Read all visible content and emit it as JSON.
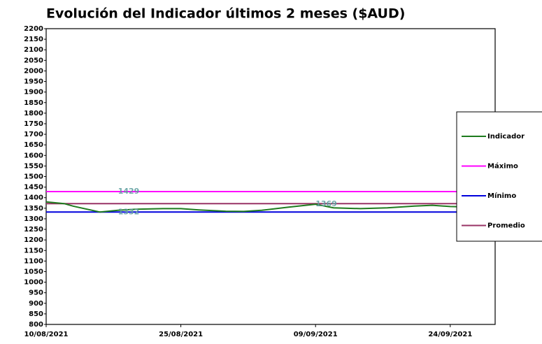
{
  "chart_data": {
    "type": "line",
    "title": "Evolución del Indicador últimos 2 meses ($AUD)",
    "x": [
      "10/08/2021",
      "12/08/2021",
      "13/08/2021",
      "16/08/2021",
      "18/08/2021",
      "20/08/2021",
      "23/08/2021",
      "25/08/2021",
      "27/08/2021",
      "30/08/2021",
      "01/09/2021",
      "03/09/2021",
      "06/09/2021",
      "09/09/2021",
      "11/09/2021",
      "14/09/2021",
      "17/09/2021",
      "20/09/2021",
      "22/09/2021",
      "24/09/2021",
      "27/09/2021",
      "29/09/2021"
    ],
    "series": [
      {
        "name": "Indicador",
        "color": "#1e7b1e",
        "values": [
          1380,
          1372,
          1360,
          1332,
          1340,
          1345,
          1348,
          1348,
          1342,
          1336,
          1335,
          1340,
          1355,
          1369,
          1352,
          1348,
          1352,
          1360,
          1364,
          1358,
          1355,
          1352
        ]
      },
      {
        "name": "Máximo",
        "color": "#ff00ff",
        "values": [
          1429,
          1429,
          1429,
          1429,
          1429,
          1429,
          1429,
          1429,
          1429,
          1429,
          1429,
          1429,
          1429,
          1429,
          1429,
          1429,
          1429,
          1429,
          1429,
          1429,
          1429,
          1429
        ]
      },
      {
        "name": "Mínimo",
        "color": "#0000dd",
        "values": [
          1332,
          1332,
          1332,
          1332,
          1332,
          1332,
          1332,
          1332,
          1332,
          1332,
          1332,
          1332,
          1332,
          1332,
          1332,
          1332,
          1332,
          1332,
          1332,
          1332,
          1332,
          1332
        ]
      },
      {
        "name": "Promedio",
        "color": "#993366",
        "values": [
          1372,
          1372,
          1372,
          1372,
          1372,
          1372,
          1372,
          1372,
          1372,
          1372,
          1372,
          1372,
          1372,
          1372,
          1372,
          1372,
          1372,
          1372,
          1372,
          1372,
          1372,
          1372
        ]
      }
    ],
    "annotations": [
      {
        "text": "1429",
        "x": "18/08/2021",
        "value": 1429
      },
      {
        "text": "1332",
        "x": "18/08/2021",
        "value": 1332
      },
      {
        "text": "1369",
        "x": "09/09/2021",
        "value": 1369
      }
    ],
    "xlim": [
      "10/08/2021",
      "29/09/2021"
    ],
    "xticks": [
      "10/08/2021",
      "25/08/2021",
      "09/09/2021",
      "24/09/2021"
    ],
    "ylim": [
      800,
      2200
    ],
    "yticks": [
      800,
      850,
      900,
      950,
      1000,
      1050,
      1100,
      1150,
      1200,
      1250,
      1300,
      1350,
      1400,
      1450,
      1500,
      1550,
      1600,
      1650,
      1700,
      1750,
      1800,
      1850,
      1900,
      1950,
      2000,
      2050,
      2100,
      2150,
      2200
    ],
    "grid": false,
    "legend": "right"
  }
}
